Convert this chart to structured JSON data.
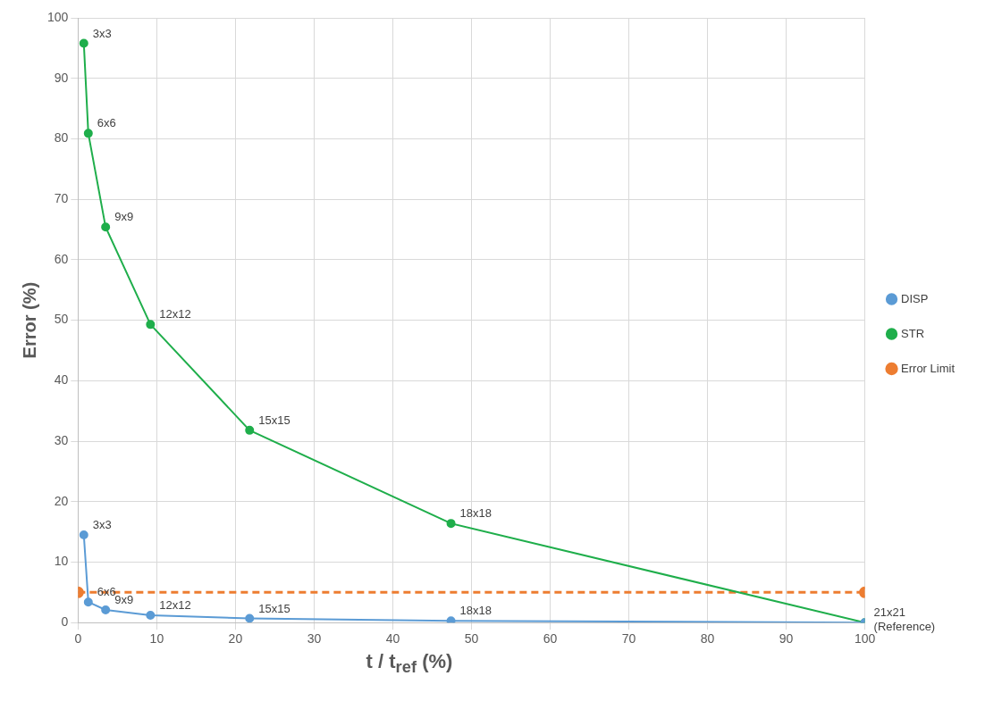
{
  "chart_data": {
    "type": "line",
    "xlabel": "t / t$_{ref}$ (%)",
    "ylabel": "Error (%)",
    "xlim": [
      0,
      100
    ],
    "xticks": [
      0,
      10,
      20,
      30,
      40,
      50,
      60,
      70,
      80,
      90,
      100
    ],
    "ylim": [
      0,
      100
    ],
    "yticks": [
      0,
      10,
      20,
      30,
      40,
      50,
      60,
      70,
      80,
      90,
      100
    ],
    "grid": true,
    "legend": "right",
    "marker": "circle",
    "series": [
      {
        "name": "DISP",
        "color": "#5b9bd5",
        "x": [
          0.73,
          1.3,
          3.5,
          9.2,
          21.8,
          47.4,
          100
        ],
        "values": [
          14.5,
          3.4,
          2.1,
          1.2,
          0.7,
          0.3,
          0
        ]
      },
      {
        "name": "STR",
        "color": "#1fae4b",
        "x": [
          0.73,
          1.3,
          3.5,
          9.2,
          21.8,
          47.4,
          100
        ],
        "values": [
          95.8,
          80.9,
          65.4,
          49.3,
          31.8,
          16.4,
          0
        ]
      },
      {
        "name": "Error Limit",
        "color": "#ed7d31",
        "x": [
          0,
          100
        ],
        "values": [
          5,
          5
        ],
        "line_style": "dashed"
      }
    ],
    "annotations": [
      {
        "text": "3x3",
        "x": 0.73,
        "y": 14.5
      },
      {
        "text": "6x6",
        "x": 1.3,
        "y": 3.4
      },
      {
        "text": "9x9",
        "x": 3.5,
        "y": 2.1
      },
      {
        "text": "12x12",
        "x": 9.2,
        "y": 1.2
      },
      {
        "text": "15x15",
        "x": 21.8,
        "y": 0.7
      },
      {
        "text": "18x18",
        "x": 47.4,
        "y": 0.3
      },
      {
        "text": "3x3",
        "x": 0.73,
        "y": 95.8
      },
      {
        "text": "6x6",
        "x": 1.3,
        "y": 80.9
      },
      {
        "text": "9x9",
        "x": 3.5,
        "y": 65.4
      },
      {
        "text": "12x12",
        "x": 9.2,
        "y": 49.3
      },
      {
        "text": "15x15",
        "x": 21.8,
        "y": 31.8
      },
      {
        "text": "18x18",
        "x": 47.4,
        "y": 16.4
      },
      {
        "text": "21x21 (Reference)",
        "x": 100,
        "y": 0
      }
    ]
  }
}
